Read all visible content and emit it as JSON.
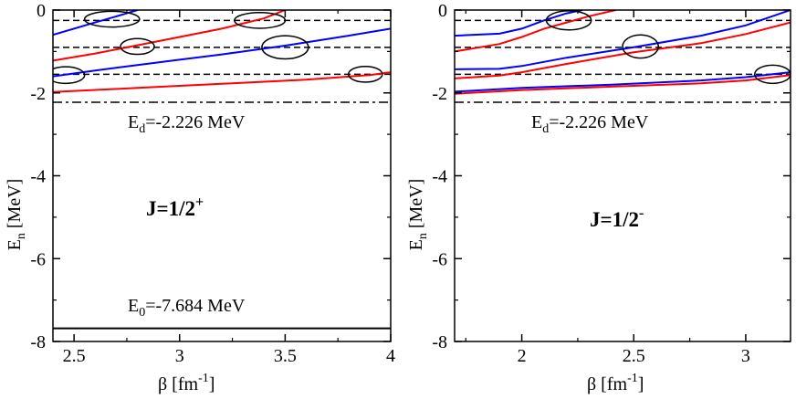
{
  "chart_data": [
    {
      "type": "line",
      "panel": "left",
      "xlim": [
        2.4,
        4.0
      ],
      "ylim": [
        -8,
        0
      ],
      "xticks": [
        2.5,
        3,
        3.5,
        4
      ],
      "xtick_labels": [
        "2.5",
        "3",
        "3.5",
        "4"
      ],
      "yticks": [
        0,
        -2,
        -4,
        -6,
        -8
      ],
      "ytick_labels": [
        "0",
        "-2",
        "-4",
        "-6",
        "-8"
      ],
      "xlabel": {
        "main": "β [fm",
        "sup": "-1",
        "close": "]"
      },
      "ylabel": {
        "main": "E",
        "sub": "n",
        "rest": " [MeV]"
      },
      "series": [
        {
          "name": "blue-upper",
          "color": "#0000ff",
          "x": [
            2.4,
            2.6,
            2.75,
            2.8
          ],
          "y": [
            -0.6,
            -0.3,
            -0.08,
            0.0
          ]
        },
        {
          "name": "red-upper",
          "color": "#ff0000",
          "x": [
            2.4,
            2.6,
            2.8,
            3.0,
            3.2,
            3.4,
            3.5
          ],
          "y": [
            -1.22,
            -1.05,
            -0.85,
            -0.65,
            -0.45,
            -0.2,
            0.0
          ]
        },
        {
          "name": "blue-lower",
          "color": "#0000ff",
          "x": [
            2.4,
            2.6,
            2.8,
            3.0,
            3.2,
            3.5,
            3.8,
            4.0
          ],
          "y": [
            -1.6,
            -1.46,
            -1.33,
            -1.2,
            -1.07,
            -0.86,
            -0.62,
            -0.45
          ]
        },
        {
          "name": "red-lower",
          "color": "#ff0000",
          "x": [
            2.4,
            2.8,
            3.2,
            3.6,
            3.9,
            4.0
          ],
          "y": [
            -1.98,
            -1.88,
            -1.78,
            -1.68,
            -1.57,
            -1.5
          ]
        }
      ],
      "thresholds_dashed": [
        -0.25,
        -0.9,
        -1.55
      ],
      "threshold_dashdot": -2.226,
      "ground_line": -7.684,
      "circles": [
        {
          "x": 2.68,
          "y": -0.22,
          "rx": 0.13,
          "ry": 0.19
        },
        {
          "x": 2.8,
          "y": -0.88,
          "rx": 0.08,
          "ry": 0.19
        },
        {
          "x": 3.38,
          "y": -0.25,
          "rx": 0.12,
          "ry": 0.19
        },
        {
          "x": 3.5,
          "y": -0.9,
          "rx": 0.11,
          "ry": 0.28
        },
        {
          "x": 2.46,
          "y": -1.57,
          "rx": 0.09,
          "ry": 0.2
        },
        {
          "x": 3.88,
          "y": -1.55,
          "rx": 0.08,
          "ry": 0.19
        }
      ],
      "annotations": {
        "ed": {
          "main": "E",
          "sub": "d",
          "rest": "=-2.226 MeV"
        },
        "e0": {
          "main": "E",
          "sub": "0",
          "rest": "=-7.684 MeV"
        },
        "j": {
          "main": "J=1/2",
          "sup": "+"
        }
      }
    },
    {
      "type": "line",
      "panel": "right",
      "xlim": [
        1.7,
        3.2
      ],
      "ylim": [
        -8,
        0
      ],
      "xticks": [
        2,
        2.5,
        3
      ],
      "xtick_labels": [
        "2",
        "2.5",
        "3"
      ],
      "yticks": [
        0,
        -2,
        -4,
        -6,
        -8
      ],
      "ytick_labels": [
        "0",
        "-2",
        "-4",
        "-6",
        "-8"
      ],
      "xlabel": {
        "main": "β [fm",
        "sup": "-1",
        "close": "]"
      },
      "ylabel": {
        "main": "E",
        "sub": "n",
        "rest": " [MeV]"
      },
      "series": [
        {
          "name": "blue-upper",
          "color": "#0000ff",
          "x": [
            1.7,
            1.9,
            2.0,
            2.1,
            2.2,
            2.27
          ],
          "y": [
            -0.62,
            -0.57,
            -0.45,
            -0.25,
            -0.08,
            0.0
          ]
        },
        {
          "name": "red-upper",
          "color": "#ff0000",
          "x": [
            1.7,
            1.9,
            2.0,
            2.1,
            2.2,
            2.3,
            2.42
          ],
          "y": [
            -1.0,
            -0.82,
            -0.65,
            -0.45,
            -0.3,
            -0.15,
            0.0
          ]
        },
        {
          "name": "blue-middle",
          "color": "#0000ff",
          "x": [
            1.7,
            1.9,
            2.0,
            2.2,
            2.5,
            2.8,
            3.0,
            3.2
          ],
          "y": [
            -1.43,
            -1.42,
            -1.35,
            -1.15,
            -0.9,
            -0.62,
            -0.37,
            0.0
          ]
        },
        {
          "name": "red-middle",
          "color": "#ff0000",
          "x": [
            1.7,
            1.9,
            2.0,
            2.2,
            2.5,
            2.8,
            3.0,
            3.2
          ],
          "y": [
            -1.65,
            -1.58,
            -1.5,
            -1.3,
            -1.02,
            -0.8,
            -0.58,
            -0.3
          ]
        },
        {
          "name": "blue-lower",
          "color": "#0000ff",
          "x": [
            1.7,
            2.0,
            2.4,
            2.8,
            3.0,
            3.2
          ],
          "y": [
            -1.97,
            -1.88,
            -1.8,
            -1.7,
            -1.62,
            -1.5
          ]
        },
        {
          "name": "red-lower",
          "color": "#ff0000",
          "x": [
            1.7,
            2.0,
            2.4,
            2.8,
            3.0,
            3.2
          ],
          "y": [
            -2.02,
            -1.93,
            -1.85,
            -1.77,
            -1.7,
            -1.57
          ]
        }
      ],
      "thresholds_dashed": [
        -0.25,
        -0.9,
        -1.55
      ],
      "threshold_dashdot": -2.226,
      "circles": [
        {
          "x": 2.21,
          "y": -0.25,
          "rx": 0.1,
          "ry": 0.23
        },
        {
          "x": 2.53,
          "y": -0.88,
          "rx": 0.08,
          "ry": 0.28
        },
        {
          "x": 3.12,
          "y": -1.55,
          "rx": 0.08,
          "ry": 0.22
        }
      ],
      "annotations": {
        "ed": {
          "main": "E",
          "sub": "d",
          "rest": "=-2.226 MeV"
        },
        "j": {
          "main": "J=1/2",
          "sup": "-"
        }
      }
    }
  ]
}
